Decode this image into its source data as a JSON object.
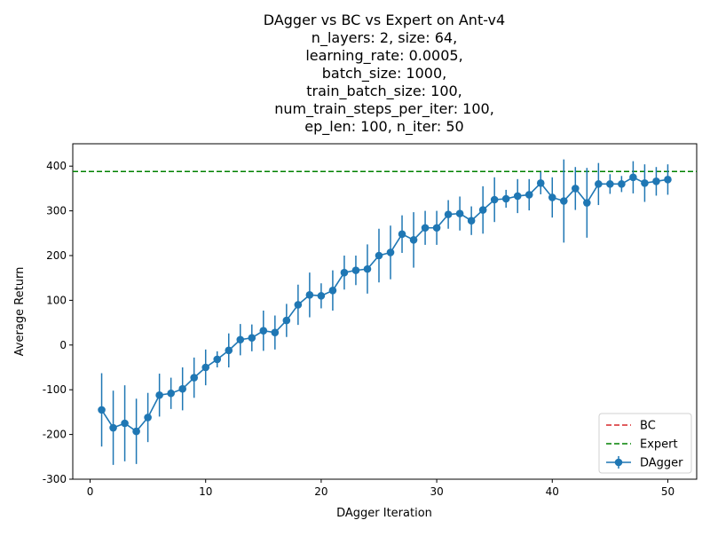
{
  "chart_data": {
    "type": "line",
    "title_lines": [
      "DAgger vs BC vs Expert on Ant-v4",
      "n_layers: 2, size: 64,",
      "learning_rate: 0.0005,",
      "batch_size: 1000,",
      "train_batch_size: 100,",
      "num_train_steps_per_iter: 100,",
      "ep_len: 100, n_iter: 50"
    ],
    "xlabel": "DAgger Iteration",
    "ylabel": "Average Return",
    "xlim": [
      -1.5,
      52.5
    ],
    "ylim": [
      -300,
      450
    ],
    "xticks": [
      0,
      10,
      20,
      30,
      40,
      50
    ],
    "yticks": [
      -300,
      -200,
      -100,
      0,
      100,
      200,
      300,
      400
    ],
    "grid": false,
    "legend_position": "lower-right",
    "series": [
      {
        "name": "BC",
        "kind": "hline",
        "style": "dashed",
        "color": "#d62728",
        "value": null
      },
      {
        "name": "Expert",
        "kind": "hline",
        "style": "dashed",
        "color": "#008000",
        "value": 388
      },
      {
        "name": "DAgger",
        "kind": "errorbar",
        "color": "#1f77b4",
        "x": [
          1,
          2,
          3,
          4,
          5,
          6,
          7,
          8,
          9,
          10,
          11,
          12,
          13,
          14,
          15,
          16,
          17,
          18,
          19,
          20,
          21,
          22,
          23,
          24,
          25,
          26,
          27,
          28,
          29,
          30,
          31,
          32,
          33,
          34,
          35,
          36,
          37,
          38,
          39,
          40,
          41,
          42,
          43,
          44,
          45,
          46,
          47,
          48,
          49,
          50
        ],
        "y": [
          -145,
          -185,
          -175,
          -193,
          -162,
          -112,
          -108,
          -98,
          -73,
          -50,
          -32,
          -12,
          12,
          16,
          32,
          28,
          55,
          90,
          112,
          110,
          122,
          162,
          167,
          170,
          200,
          207,
          248,
          235,
          262,
          262,
          292,
          294,
          278,
          302,
          325,
          327,
          333,
          336,
          362,
          330,
          322,
          350,
          318,
          360,
          360,
          360,
          375,
          362,
          366,
          370
        ],
        "err": [
          82,
          83,
          85,
          73,
          55,
          48,
          35,
          48,
          45,
          40,
          18,
          38,
          35,
          30,
          45,
          38,
          37,
          45,
          50,
          28,
          45,
          38,
          33,
          55,
          60,
          60,
          42,
          62,
          38,
          38,
          32,
          38,
          32,
          53,
          50,
          20,
          38,
          35,
          25,
          45,
          93,
          48,
          78,
          47,
          22,
          18,
          36,
          42,
          32,
          34
        ]
      }
    ]
  }
}
